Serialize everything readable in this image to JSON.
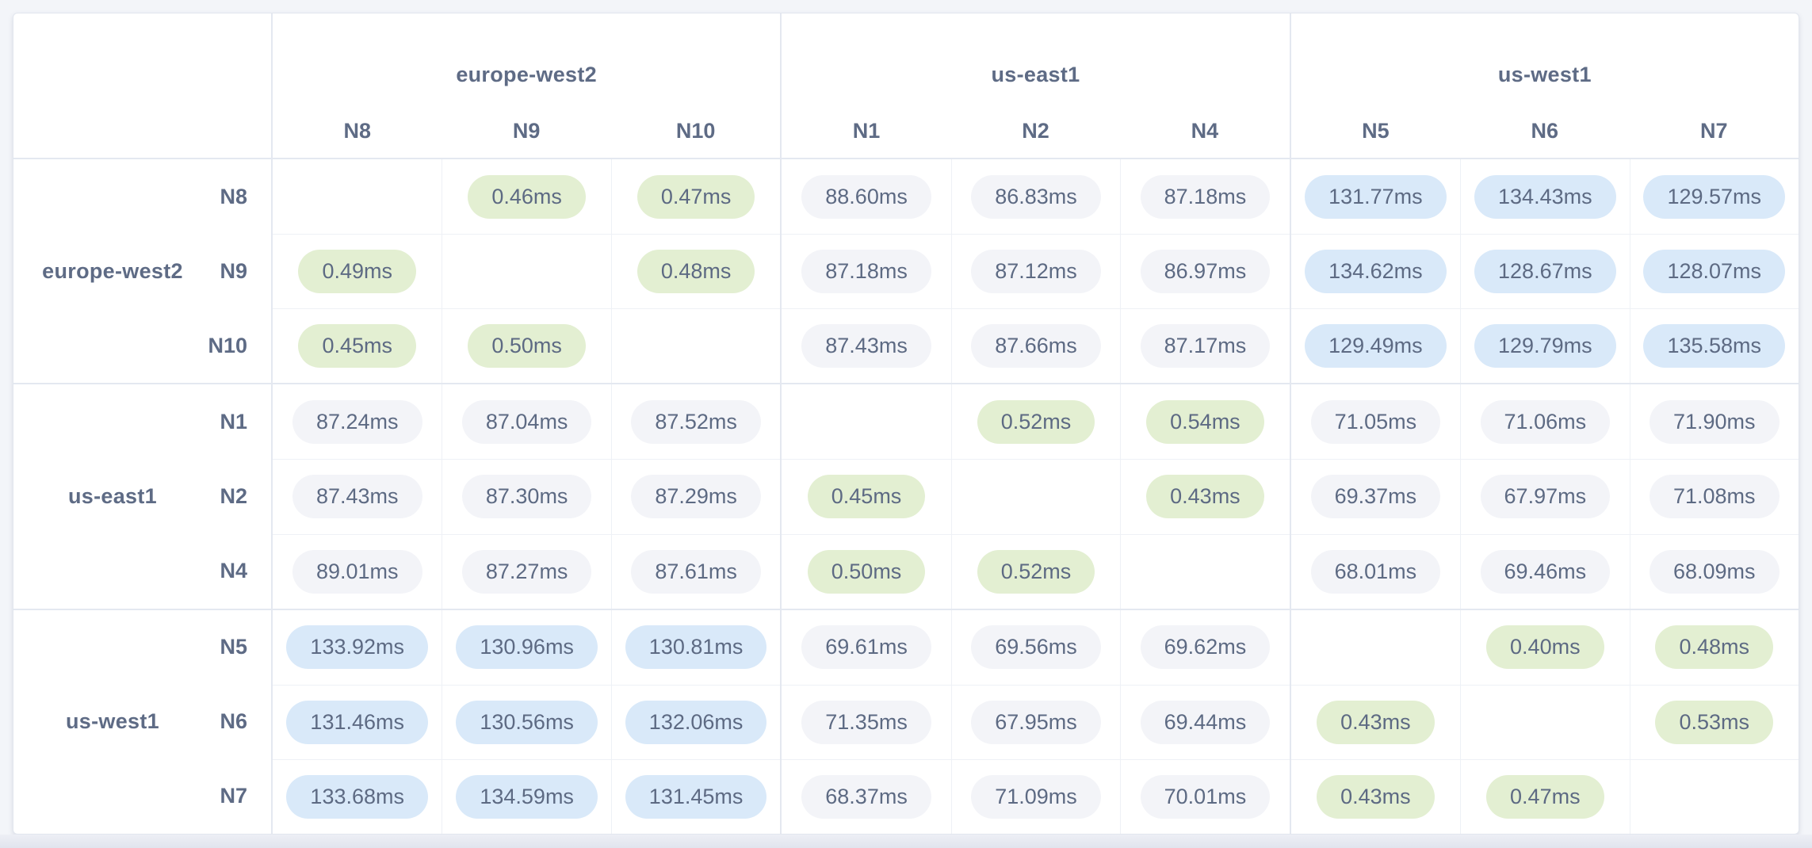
{
  "matrix": {
    "column_groups": [
      {
        "region": "europe-west2",
        "nodes": [
          "N8",
          "N9",
          "N10"
        ]
      },
      {
        "region": "us-east1",
        "nodes": [
          "N1",
          "N2",
          "N4"
        ]
      },
      {
        "region": "us-west1",
        "nodes": [
          "N5",
          "N6",
          "N7"
        ]
      }
    ],
    "row_groups": [
      {
        "region": "europe-west2",
        "rows": [
          {
            "node": "N8",
            "cells": [
              "",
              "0.46ms",
              "0.47ms",
              "88.60ms",
              "86.83ms",
              "87.18ms",
              "131.77ms",
              "134.43ms",
              "129.57ms"
            ]
          },
          {
            "node": "N9",
            "cells": [
              "0.49ms",
              "",
              "0.48ms",
              "87.18ms",
              "87.12ms",
              "86.97ms",
              "134.62ms",
              "128.67ms",
              "128.07ms"
            ]
          },
          {
            "node": "N10",
            "cells": [
              "0.45ms",
              "0.50ms",
              "",
              "87.43ms",
              "87.66ms",
              "87.17ms",
              "129.49ms",
              "129.79ms",
              "135.58ms"
            ]
          }
        ]
      },
      {
        "region": "us-east1",
        "rows": [
          {
            "node": "N1",
            "cells": [
              "87.24ms",
              "87.04ms",
              "87.52ms",
              "",
              "0.52ms",
              "0.54ms",
              "71.05ms",
              "71.06ms",
              "71.90ms"
            ]
          },
          {
            "node": "N2",
            "cells": [
              "87.43ms",
              "87.30ms",
              "87.29ms",
              "0.45ms",
              "",
              "0.43ms",
              "69.37ms",
              "67.97ms",
              "71.08ms"
            ]
          },
          {
            "node": "N4",
            "cells": [
              "89.01ms",
              "87.27ms",
              "87.61ms",
              "0.50ms",
              "0.52ms",
              "",
              "68.01ms",
              "69.46ms",
              "68.09ms"
            ]
          }
        ]
      },
      {
        "region": "us-west1",
        "rows": [
          {
            "node": "N5",
            "cells": [
              "133.92ms",
              "130.96ms",
              "130.81ms",
              "69.61ms",
              "69.56ms",
              "69.62ms",
              "",
              "0.40ms",
              "0.48ms"
            ]
          },
          {
            "node": "N6",
            "cells": [
              "131.46ms",
              "130.56ms",
              "132.06ms",
              "71.35ms",
              "67.95ms",
              "69.44ms",
              "0.43ms",
              "",
              "0.53ms"
            ]
          },
          {
            "node": "N7",
            "cells": [
              "133.68ms",
              "134.59ms",
              "131.45ms",
              "68.37ms",
              "71.09ms",
              "70.01ms",
              "0.43ms",
              "0.47ms",
              ""
            ]
          }
        ]
      }
    ]
  },
  "colors": {
    "latency_low_bg": "#e3efd2",
    "latency_mid_bg": "#f3f4f8",
    "latency_high_bg": "#d9e9f9",
    "label_text": "#5e6b85",
    "value_text": "#5d6a83",
    "grid_line": "#e4e8f0",
    "card_bg": "#ffffff",
    "page_bg": "#f3f5f9"
  },
  "chart_data": {
    "type": "heatmap",
    "unit": "ms",
    "columns": [
      "N8",
      "N9",
      "N10",
      "N1",
      "N2",
      "N4",
      "N5",
      "N6",
      "N7"
    ],
    "column_regions": [
      "europe-west2",
      "europe-west2",
      "europe-west2",
      "us-east1",
      "us-east1",
      "us-east1",
      "us-west1",
      "us-west1",
      "us-west1"
    ],
    "rows": [
      "N8",
      "N9",
      "N10",
      "N1",
      "N2",
      "N4",
      "N5",
      "N6",
      "N7"
    ],
    "row_regions": [
      "europe-west2",
      "europe-west2",
      "europe-west2",
      "us-east1",
      "us-east1",
      "us-east1",
      "us-west1",
      "us-west1",
      "us-west1"
    ],
    "values_ms": [
      [
        null,
        0.46,
        0.47,
        88.6,
        86.83,
        87.18,
        131.77,
        134.43,
        129.57
      ],
      [
        0.49,
        null,
        0.48,
        87.18,
        87.12,
        86.97,
        134.62,
        128.67,
        128.07
      ],
      [
        0.45,
        0.5,
        null,
        87.43,
        87.66,
        87.17,
        129.49,
        129.79,
        135.58
      ],
      [
        87.24,
        87.04,
        87.52,
        null,
        0.52,
        0.54,
        71.05,
        71.06,
        71.9
      ],
      [
        87.43,
        87.3,
        87.29,
        0.45,
        null,
        0.43,
        69.37,
        67.97,
        71.08
      ],
      [
        89.01,
        87.27,
        87.61,
        0.5,
        0.52,
        null,
        68.01,
        69.46,
        68.09
      ],
      [
        133.92,
        130.96,
        130.81,
        69.61,
        69.56,
        69.62,
        null,
        0.4,
        0.48
      ],
      [
        131.46,
        130.56,
        132.06,
        71.35,
        67.95,
        69.44,
        0.43,
        null,
        0.53
      ],
      [
        133.68,
        134.59,
        131.45,
        68.37,
        71.09,
        70.01,
        0.43,
        0.47,
        null
      ]
    ],
    "value_levels": {
      "low_green_below": 1,
      "mid_gray_below": 100,
      "high_blue_at_or_above": 100
    }
  }
}
